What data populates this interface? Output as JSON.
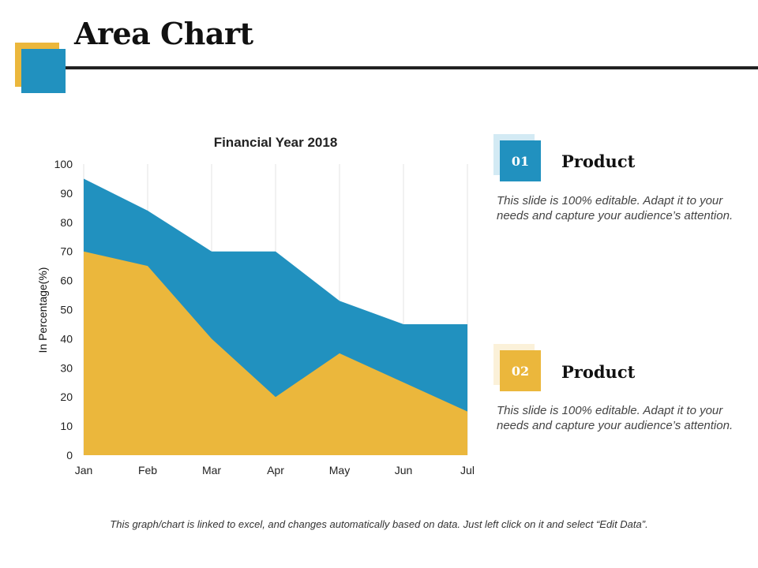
{
  "slide": {
    "title": "Area Chart",
    "footer_note": "This graph/chart is linked to excel, and changes automatically based on data. Just left click on it and select “Edit Data”."
  },
  "colors": {
    "blue": "#2191BF",
    "gold": "#EBB73C",
    "blue_light": "#D3EAF4",
    "gold_light": "#FBF1D9",
    "rule": "#222222"
  },
  "chart_data": {
    "type": "area",
    "title": "Financial Year 2018",
    "xlabel": "",
    "ylabel": "In Percentage(%)",
    "categories": [
      "Jan",
      "Feb",
      "Mar",
      "Apr",
      "May",
      "Jun",
      "Jul"
    ],
    "series": [
      {
        "name": "Product 01",
        "values": [
          95,
          84,
          70,
          70,
          53,
          45,
          45
        ]
      },
      {
        "name": "Product 02",
        "values": [
          70,
          65,
          40,
          20,
          35,
          25,
          15
        ]
      }
    ],
    "ylim": [
      0,
      100
    ],
    "yticks": [
      0,
      10,
      20,
      30,
      40,
      50,
      60,
      70,
      80,
      90,
      100
    ],
    "grid": "vertical",
    "legend": "none"
  },
  "products": [
    {
      "number": "01",
      "title": "Product",
      "description": "This slide is 100% editable. Adapt it to your needs and capture your audience’s attention."
    },
    {
      "number": "02",
      "title": "Product",
      "description": "This slide is 100% editable. Adapt it to your needs and capture your audience’s attention."
    }
  ]
}
